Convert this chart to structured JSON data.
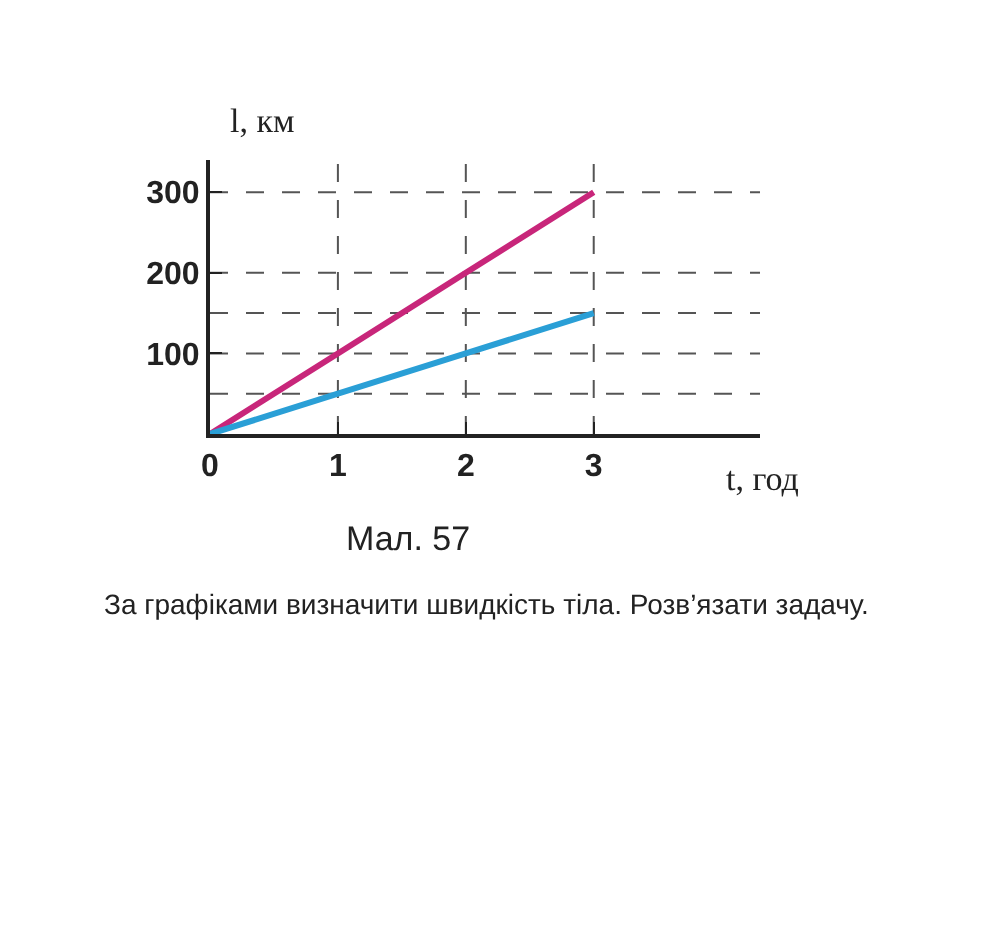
{
  "chart_data": {
    "type": "line",
    "xlabel": "t, год",
    "ylabel": "l, км",
    "x": [
      0,
      1,
      2,
      3
    ],
    "series": [
      {
        "color": "#c8267a",
        "values": [
          0,
          100,
          200,
          300
        ]
      },
      {
        "color": "#2a9fd6",
        "values": [
          0,
          50,
          100,
          150
        ]
      }
    ],
    "xlim": [
      0,
      4.3
    ],
    "ylim": [
      0,
      340
    ],
    "xticks": [
      0,
      1,
      2,
      3
    ],
    "yticks": [
      100,
      200,
      300
    ],
    "ref_lines": [
      {
        "axis": "y",
        "value": 50,
        "line_style": "dashed",
        "color": "#555555"
      },
      {
        "axis": "y",
        "value": 100,
        "line_style": "dashed",
        "color": "#555555"
      },
      {
        "axis": "y",
        "value": 150,
        "line_style": "dashed",
        "color": "#555555"
      },
      {
        "axis": "y",
        "value": 200,
        "line_style": "dashed",
        "color": "#555555"
      },
      {
        "axis": "y",
        "value": 300,
        "line_style": "dashed",
        "color": "#555555"
      },
      {
        "axis": "x",
        "value": 1,
        "line_style": "dashed",
        "color": "#555555"
      },
      {
        "axis": "x",
        "value": 2,
        "line_style": "dashed",
        "color": "#555555"
      },
      {
        "axis": "x",
        "value": 3,
        "line_style": "dashed",
        "color": "#555555"
      }
    ],
    "annotations": [
      "Мал. 57",
      "За графіками визначити швидкість тіла. Розв’язати задачу."
    ],
    "marker": "none",
    "line_style": "solid"
  }
}
